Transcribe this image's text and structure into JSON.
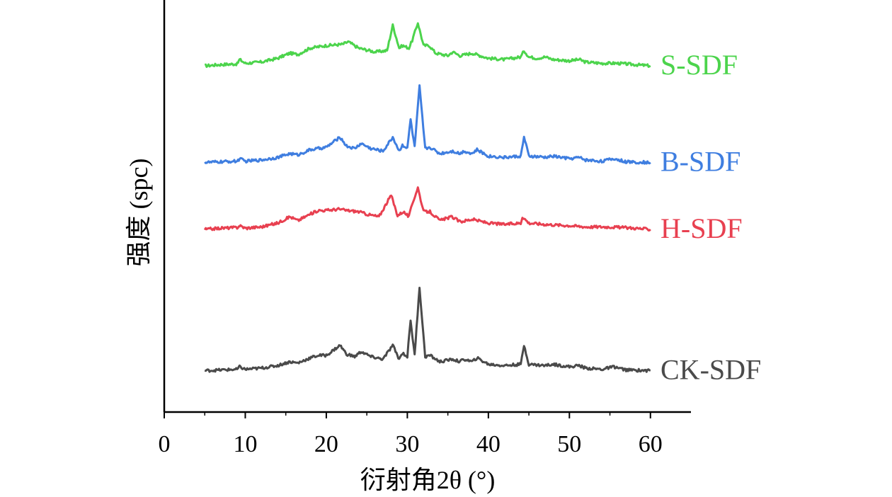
{
  "chart_data": {
    "type": "line",
    "title": "",
    "xlabel": "衍射角2θ (°)",
    "ylabel": "强度 (spc)",
    "xlim": [
      0,
      65
    ],
    "xticks": [
      0,
      10,
      20,
      30,
      40,
      50,
      60
    ],
    "y_tick_labels": false,
    "grid": false,
    "legend": "inline-right",
    "series": [
      {
        "name": "S-SDF",
        "color": "#4cd44c",
        "baseline": 0.88,
        "x": [
          5,
          7,
          9,
          9.3,
          10,
          12,
          14,
          15.5,
          16.5,
          18,
          20,
          22,
          22.7,
          24,
          26,
          27.5,
          28.2,
          29,
          29.4,
          30.2,
          30.6,
          31.3,
          32,
          32.7,
          33.5,
          35,
          35.6,
          36.5,
          38,
          40,
          42,
          44,
          44.4,
          45,
          46,
          47,
          48,
          50,
          51.2,
          52,
          54,
          56,
          58,
          60
        ],
        "y": [
          0.0,
          0.01,
          0.015,
          0.05,
          0.02,
          0.03,
          0.06,
          0.1,
          0.09,
          0.14,
          0.16,
          0.17,
          0.19,
          0.14,
          0.11,
          0.12,
          0.32,
          0.14,
          0.16,
          0.14,
          0.2,
          0.34,
          0.16,
          0.16,
          0.1,
          0.08,
          0.11,
          0.08,
          0.1,
          0.06,
          0.05,
          0.07,
          0.12,
          0.07,
          0.06,
          0.07,
          0.05,
          0.04,
          0.05,
          0.03,
          0.02,
          0.02,
          0.01,
          0.0
        ]
      },
      {
        "name": "B-SDF",
        "color": "#3f7ee0",
        "baseline": 0.62,
        "x": [
          5,
          7,
          9,
          9.3,
          10,
          12,
          14,
          15.5,
          16.5,
          18,
          20,
          21.7,
          22.5,
          23.5,
          24.3,
          25.5,
          27,
          28.2,
          29,
          29.4,
          30,
          30.4,
          30.9,
          31.5,
          32.2,
          32.8,
          34,
          35.6,
          36.5,
          37,
          38,
          38.6,
          40,
          42,
          44,
          44.4,
          45,
          47,
          48,
          50,
          51.2,
          52,
          54,
          55.5,
          57,
          60
        ],
        "y": [
          0.0,
          0.005,
          0.01,
          0.03,
          0.01,
          0.02,
          0.04,
          0.07,
          0.06,
          0.1,
          0.12,
          0.2,
          0.13,
          0.11,
          0.15,
          0.11,
          0.09,
          0.2,
          0.09,
          0.14,
          0.11,
          0.34,
          0.12,
          0.6,
          0.11,
          0.12,
          0.07,
          0.09,
          0.07,
          0.09,
          0.07,
          0.1,
          0.05,
          0.04,
          0.05,
          0.2,
          0.05,
          0.04,
          0.05,
          0.03,
          0.04,
          0.02,
          0.01,
          0.03,
          0.005,
          0.0
        ]
      },
      {
        "name": "H-SDF",
        "color": "#e84050",
        "baseline": 0.44,
        "x": [
          5,
          7,
          9,
          9.3,
          10,
          12,
          14,
          15.5,
          16.5,
          18,
          19,
          20,
          21.5,
          22.5,
          24,
          25,
          26.5,
          28,
          28.8,
          29.5,
          30.2,
          30.6,
          31.3,
          32,
          32.8,
          34,
          35.5,
          36.5,
          38,
          40,
          42,
          44,
          44.2,
          45,
          47,
          50,
          52,
          55,
          58,
          60
        ],
        "y": [
          0.0,
          0.01,
          0.015,
          0.03,
          0.01,
          0.02,
          0.05,
          0.1,
          0.07,
          0.12,
          0.15,
          0.15,
          0.16,
          0.15,
          0.14,
          0.12,
          0.1,
          0.27,
          0.11,
          0.14,
          0.1,
          0.2,
          0.33,
          0.14,
          0.14,
          0.07,
          0.1,
          0.06,
          0.08,
          0.05,
          0.04,
          0.05,
          0.1,
          0.05,
          0.04,
          0.03,
          0.02,
          0.02,
          0.01,
          0.0
        ]
      },
      {
        "name": "CK-SDF",
        "color": "#4a4a4a",
        "baseline": 0.06,
        "x": [
          5,
          7,
          9,
          9.3,
          10,
          12,
          14,
          15.5,
          16.5,
          18,
          19,
          20,
          21.7,
          22.5,
          23.5,
          24.3,
          25.5,
          27,
          28.2,
          29,
          29.4,
          30,
          30.4,
          30.9,
          31.5,
          32.2,
          32.8,
          34,
          35.6,
          36.5,
          37,
          38,
          38.6,
          40,
          42,
          44,
          44.4,
          45,
          47,
          48,
          50,
          51.2,
          52,
          54,
          55.5,
          57,
          60
        ],
        "y": [
          0.0,
          0.005,
          0.01,
          0.03,
          0.01,
          0.02,
          0.04,
          0.07,
          0.06,
          0.1,
          0.12,
          0.12,
          0.2,
          0.13,
          0.11,
          0.15,
          0.11,
          0.09,
          0.2,
          0.09,
          0.14,
          0.11,
          0.4,
          0.12,
          0.66,
          0.11,
          0.12,
          0.07,
          0.09,
          0.07,
          0.09,
          0.07,
          0.1,
          0.05,
          0.04,
          0.05,
          0.2,
          0.05,
          0.04,
          0.05,
          0.03,
          0.04,
          0.02,
          0.01,
          0.03,
          0.005,
          0.0
        ]
      }
    ]
  }
}
